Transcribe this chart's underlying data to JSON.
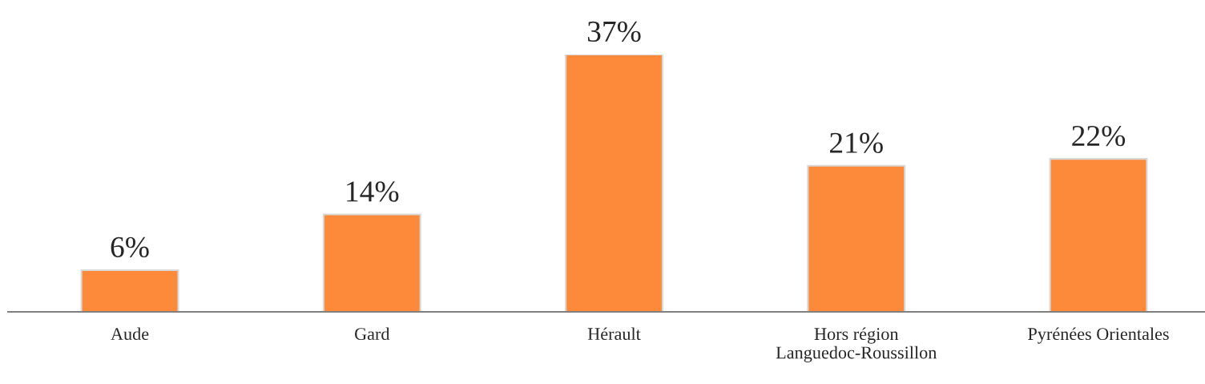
{
  "chart_data": {
    "type": "bar",
    "categories": [
      "Aude",
      "Gard",
      "Hérault",
      "Hors région\nLanguedoc-Roussillon",
      "Pyrénées Orientales"
    ],
    "values": [
      6,
      14,
      37,
      21,
      22
    ],
    "value_labels": [
      "6%",
      "14%",
      "37%",
      "21%",
      "22%"
    ],
    "color": "#fd8a3b",
    "grid": false,
    "legend": false
  }
}
